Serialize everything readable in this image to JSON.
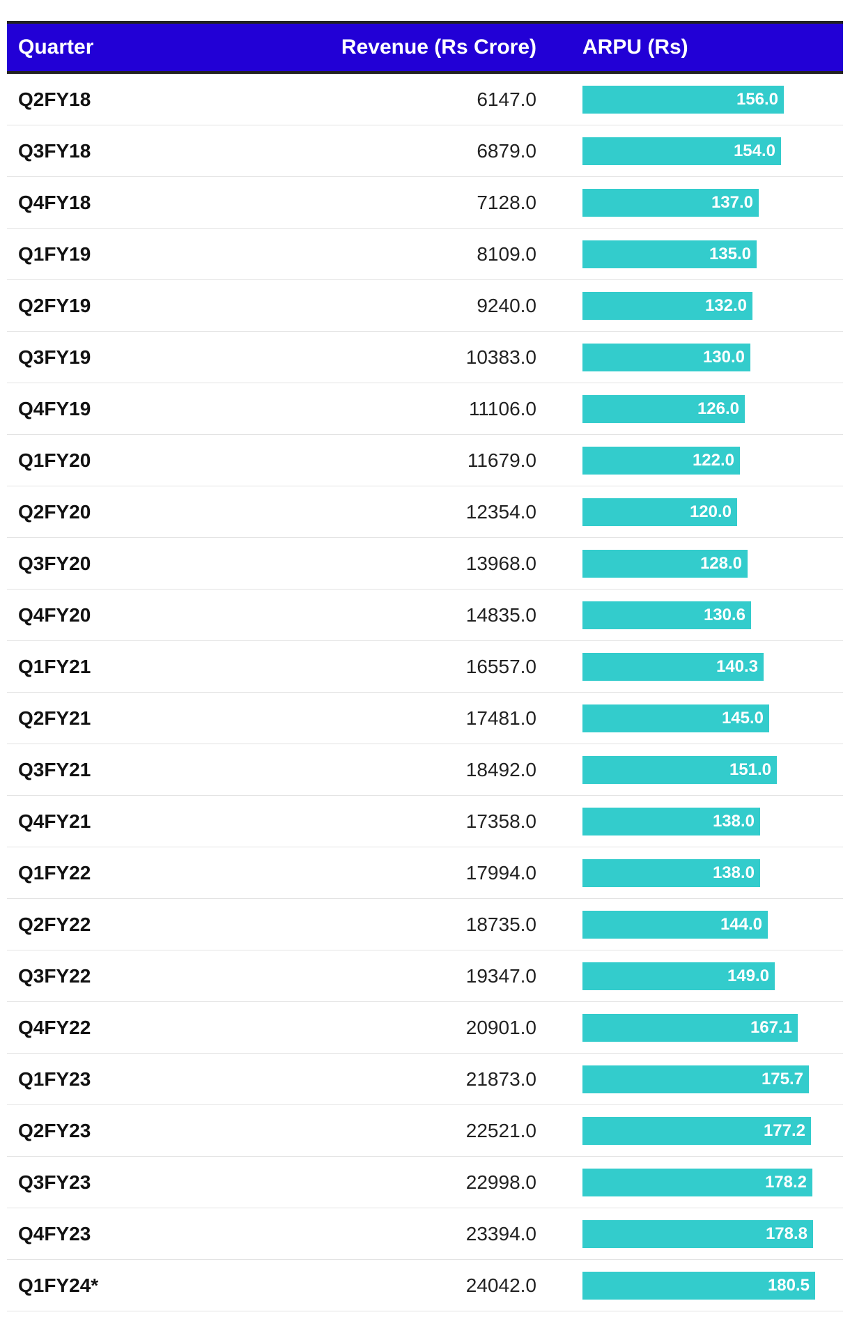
{
  "colors": {
    "header_bg": "#2200d6",
    "header_text": "#ffffff",
    "bar": "#33cccc",
    "bar_label": "#ffffff"
  },
  "table": {
    "headers": {
      "quarter": "Quarter",
      "revenue": "Revenue (Rs Crore)",
      "arpu": "ARPU (Rs)"
    }
  },
  "chart_data": {
    "type": "table",
    "columns": [
      "Quarter",
      "Revenue (Rs Crore)",
      "ARPU (Rs)"
    ],
    "bar_column": "ARPU (Rs)",
    "bar_max": 200,
    "rows": [
      {
        "quarter": "Q2FY18",
        "revenue": "6147.0",
        "arpu": 156.0,
        "arpu_label": "156.0"
      },
      {
        "quarter": "Q3FY18",
        "revenue": "6879.0",
        "arpu": 154.0,
        "arpu_label": "154.0"
      },
      {
        "quarter": "Q4FY18",
        "revenue": "7128.0",
        "arpu": 137.0,
        "arpu_label": "137.0"
      },
      {
        "quarter": "Q1FY19",
        "revenue": "8109.0",
        "arpu": 135.0,
        "arpu_label": "135.0"
      },
      {
        "quarter": "Q2FY19",
        "revenue": "9240.0",
        "arpu": 132.0,
        "arpu_label": "132.0"
      },
      {
        "quarter": "Q3FY19",
        "revenue": "10383.0",
        "arpu": 130.0,
        "arpu_label": "130.0"
      },
      {
        "quarter": "Q4FY19",
        "revenue": "11106.0",
        "arpu": 126.0,
        "arpu_label": "126.0"
      },
      {
        "quarter": "Q1FY20",
        "revenue": "11679.0",
        "arpu": 122.0,
        "arpu_label": "122.0"
      },
      {
        "quarter": "Q2FY20",
        "revenue": "12354.0",
        "arpu": 120.0,
        "arpu_label": "120.0"
      },
      {
        "quarter": "Q3FY20",
        "revenue": "13968.0",
        "arpu": 128.0,
        "arpu_label": "128.0"
      },
      {
        "quarter": "Q4FY20",
        "revenue": "14835.0",
        "arpu": 130.6,
        "arpu_label": "130.6"
      },
      {
        "quarter": "Q1FY21",
        "revenue": "16557.0",
        "arpu": 140.3,
        "arpu_label": "140.3"
      },
      {
        "quarter": "Q2FY21",
        "revenue": "17481.0",
        "arpu": 145.0,
        "arpu_label": "145.0"
      },
      {
        "quarter": "Q3FY21",
        "revenue": "18492.0",
        "arpu": 151.0,
        "arpu_label": "151.0"
      },
      {
        "quarter": "Q4FY21",
        "revenue": "17358.0",
        "arpu": 138.0,
        "arpu_label": "138.0"
      },
      {
        "quarter": "Q1FY22",
        "revenue": "17994.0",
        "arpu": 138.0,
        "arpu_label": "138.0"
      },
      {
        "quarter": "Q2FY22",
        "revenue": "18735.0",
        "arpu": 144.0,
        "arpu_label": "144.0"
      },
      {
        "quarter": "Q3FY22",
        "revenue": "19347.0",
        "arpu": 149.0,
        "arpu_label": "149.0"
      },
      {
        "quarter": "Q4FY22",
        "revenue": "20901.0",
        "arpu": 167.1,
        "arpu_label": "167.1"
      },
      {
        "quarter": "Q1FY23",
        "revenue": "21873.0",
        "arpu": 175.7,
        "arpu_label": "175.7"
      },
      {
        "quarter": "Q2FY23",
        "revenue": "22521.0",
        "arpu": 177.2,
        "arpu_label": "177.2"
      },
      {
        "quarter": "Q3FY23",
        "revenue": "22998.0",
        "arpu": 178.2,
        "arpu_label": "178.2"
      },
      {
        "quarter": "Q4FY23",
        "revenue": "23394.0",
        "arpu": 178.8,
        "arpu_label": "178.8"
      },
      {
        "quarter": "Q1FY24*",
        "revenue": "24042.0",
        "arpu": 180.5,
        "arpu_label": "180.5"
      }
    ]
  }
}
